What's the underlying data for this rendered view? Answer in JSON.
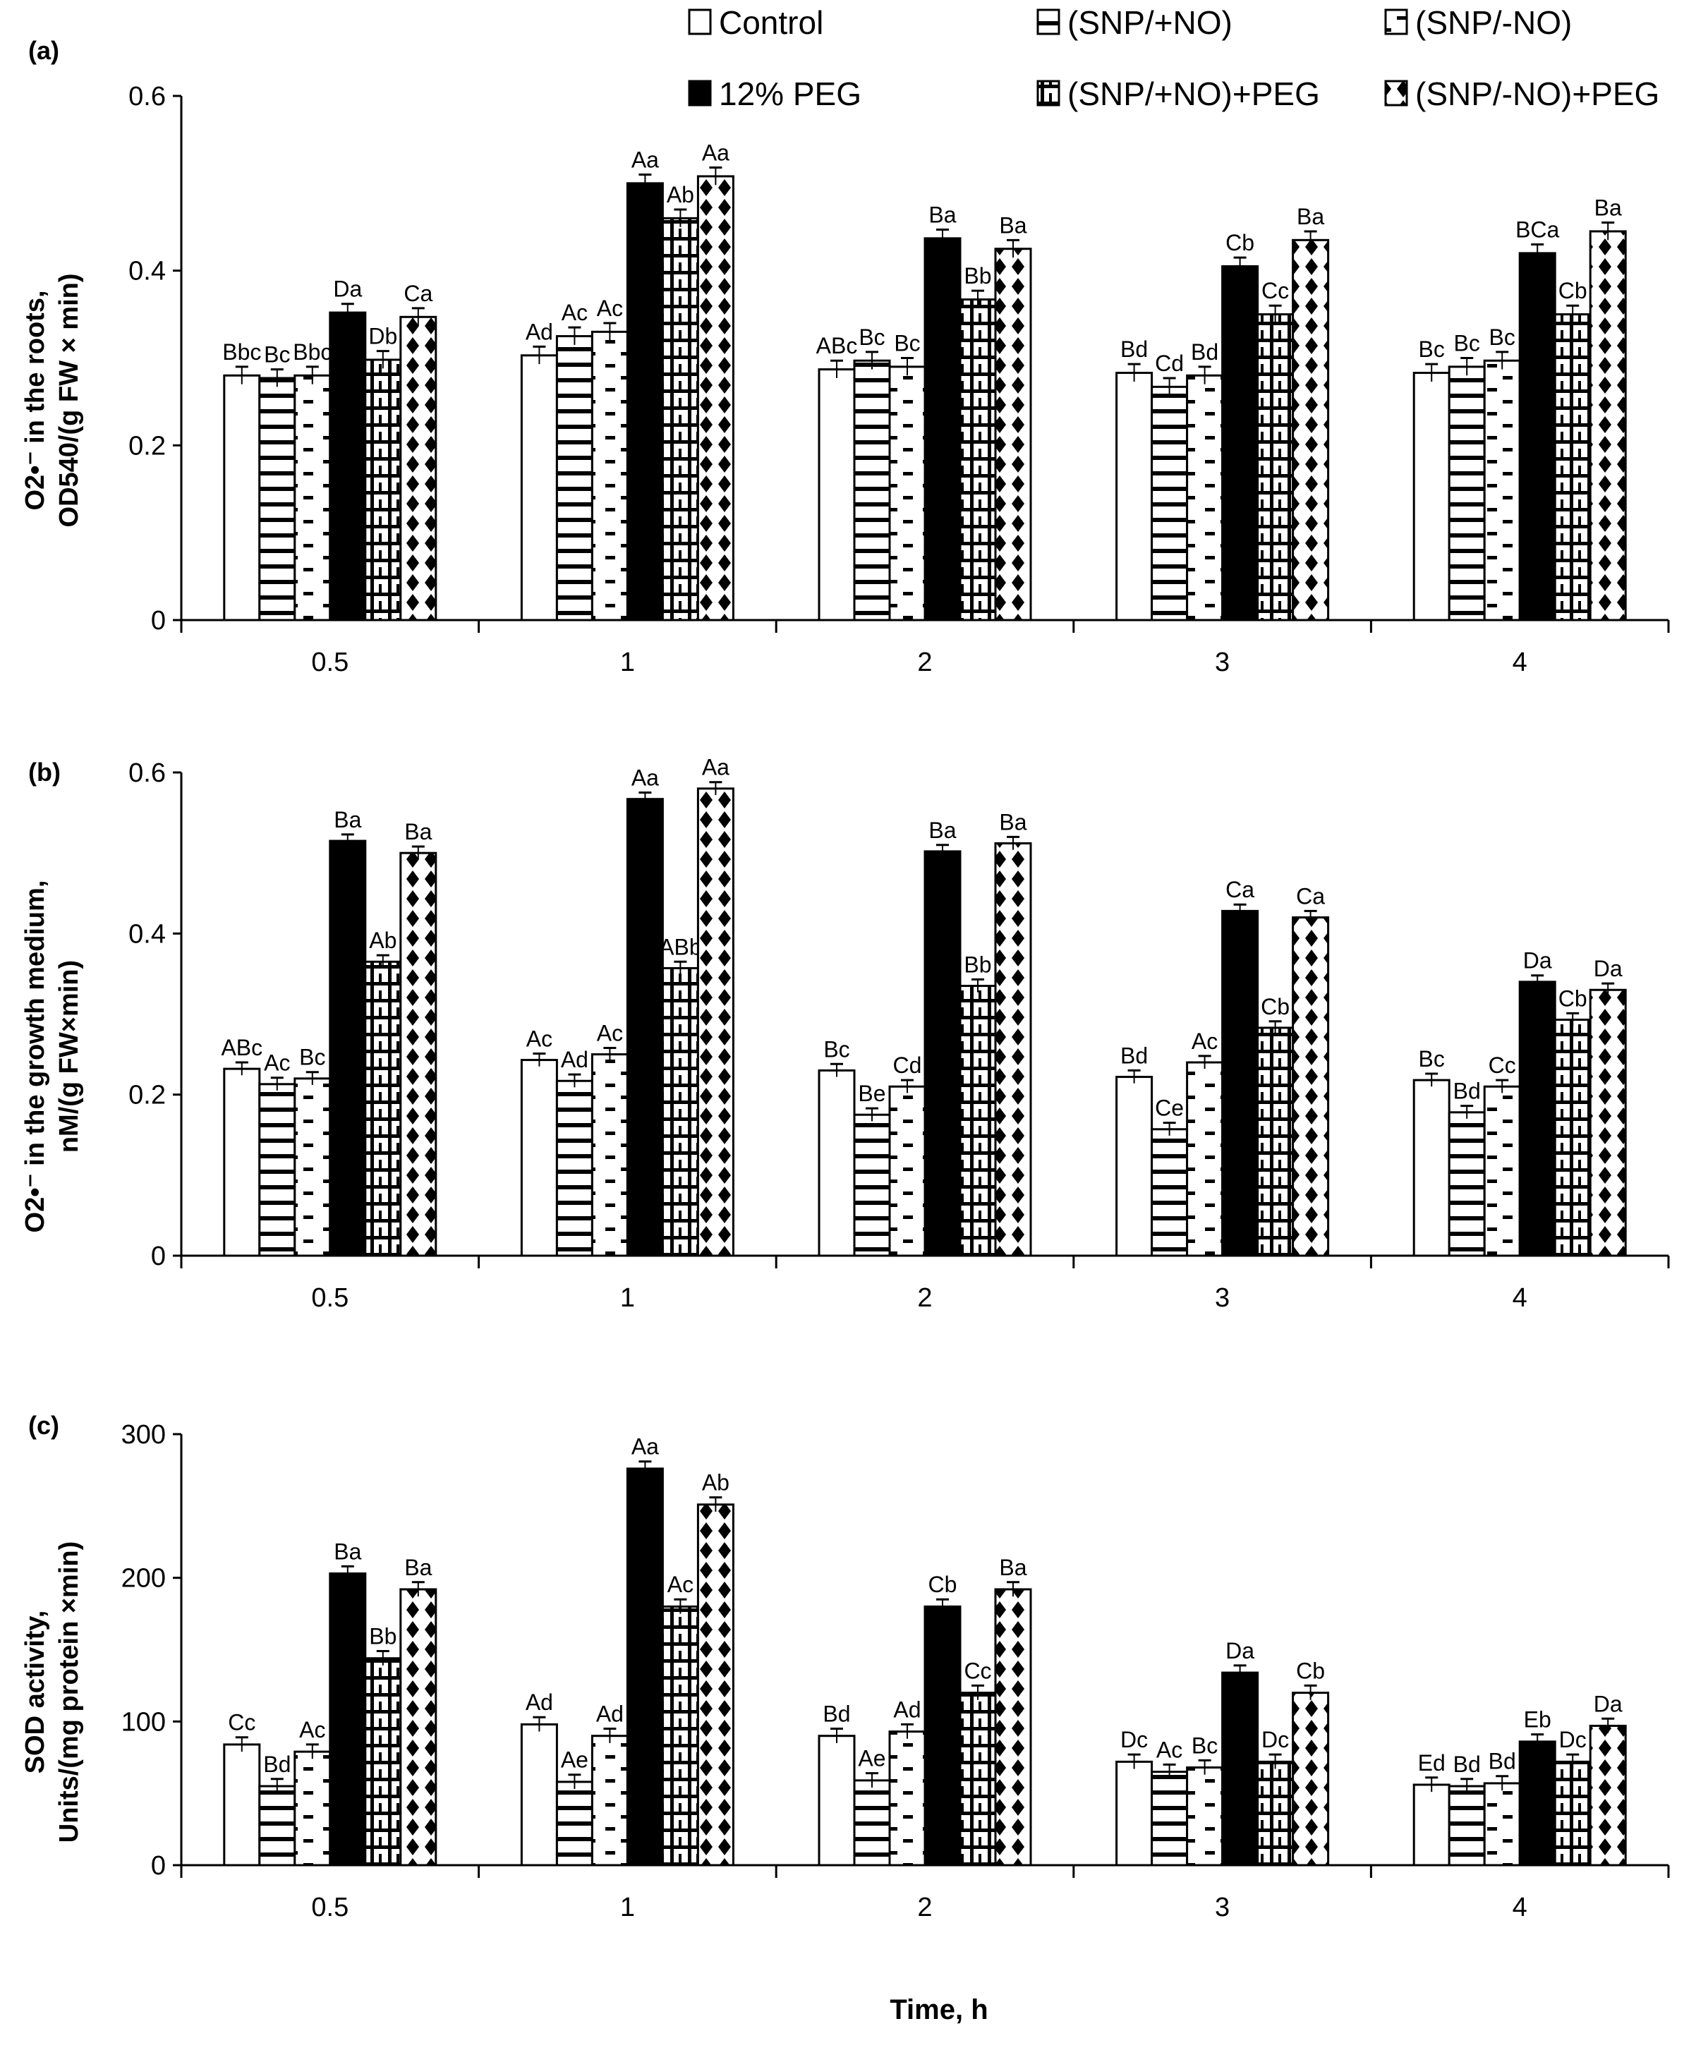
{
  "legend": [
    "Control",
    "(SNP/+NO)",
    "(SNP/-NO)",
    "12% PEG",
    "(SNP/+NO)+PEG",
    "(SNP/-NO)+PEG"
  ],
  "xlabel": "Time, h",
  "chart_data": [
    {
      "type": "bar",
      "panel": "(a)",
      "ylabel": [
        "O2•⁻ in the roots,",
        "OD540/(g FW × min)"
      ],
      "ylim": [
        0,
        0.6
      ],
      "yticks": [
        "0",
        "0.2",
        "0.4",
        "0.6"
      ],
      "categories": [
        "0.5",
        "1",
        "2",
        "3",
        "4"
      ],
      "series": [
        {
          "name": "Control",
          "values": [
            0.28,
            0.303,
            0.287,
            0.283,
            0.283
          ],
          "labels": [
            "Bbc",
            "Ad",
            "ABc",
            "Bd",
            "Bc"
          ]
        },
        {
          "name": "(SNP/+NO)",
          "values": [
            0.277,
            0.325,
            0.297,
            0.267,
            0.29
          ],
          "labels": [
            "Bc",
            "Ac",
            "Bc",
            "Cd",
            "Bc"
          ]
        },
        {
          "name": "(SNP/-NO)",
          "values": [
            0.28,
            0.33,
            0.29,
            0.28,
            0.297
          ],
          "labels": [
            "Bbc",
            "Ac",
            "Bc",
            "Bd",
            "Bc"
          ]
        },
        {
          "name": "12% PEG",
          "values": [
            0.352,
            0.5,
            0.437,
            0.405,
            0.42
          ],
          "labels": [
            "Da",
            "Aa",
            "Ba",
            "Cb",
            "BCa"
          ]
        },
        {
          "name": "(SNP/+NO)+PEG",
          "values": [
            0.298,
            0.46,
            0.367,
            0.35,
            0.35
          ],
          "labels": [
            "Db",
            "Ab",
            "Bb",
            "Cc",
            "Cb"
          ]
        },
        {
          "name": "(SNP/-NO)+PEG",
          "values": [
            0.347,
            0.508,
            0.425,
            0.435,
            0.445
          ],
          "labels": [
            "Ca",
            "Aa",
            "Ba",
            "Ba",
            "Ba"
          ]
        }
      ],
      "error": 0.01
    },
    {
      "type": "bar",
      "panel": "(b)",
      "ylabel": [
        "O2•⁻ in the growth medium,",
        "nM/(g FW×min)"
      ],
      "ylim": [
        0,
        0.6
      ],
      "yticks": [
        "0",
        "0.2",
        "0.4",
        "0.6"
      ],
      "categories": [
        "0.5",
        "1",
        "2",
        "3",
        "4"
      ],
      "series": [
        {
          "name": "Control",
          "values": [
            0.232,
            0.243,
            0.23,
            0.222,
            0.218
          ],
          "labels": [
            "ABc",
            "Ac",
            "Bc",
            "Bd",
            "Bc"
          ]
        },
        {
          "name": "(SNP/+NO)",
          "values": [
            0.213,
            0.217,
            0.175,
            0.157,
            0.178
          ],
          "labels": [
            "Ac",
            "Ad",
            "Be",
            "Ce",
            "Bd"
          ]
        },
        {
          "name": "(SNP/-NO)",
          "values": [
            0.22,
            0.25,
            0.21,
            0.24,
            0.21
          ],
          "labels": [
            "Bc",
            "Ac",
            "Cd",
            "Ac",
            "Cc"
          ]
        },
        {
          "name": "12% PEG",
          "values": [
            0.515,
            0.567,
            0.502,
            0.428,
            0.34
          ],
          "labels": [
            "Ba",
            "Aa",
            "Ba",
            "Ca",
            "Da"
          ]
        },
        {
          "name": "(SNP/+NO)+PEG",
          "values": [
            0.365,
            0.357,
            0.335,
            0.283,
            0.293
          ],
          "labels": [
            "Ab",
            "ABb",
            "Bb",
            "Cb",
            "Cb"
          ]
        },
        {
          "name": "(SNP/-NO)+PEG",
          "values": [
            0.5,
            0.58,
            0.512,
            0.42,
            0.33
          ],
          "labels": [
            "Ba",
            "Aa",
            "Ba",
            "Ca",
            "Da"
          ]
        }
      ],
      "error": 0.008
    },
    {
      "type": "bar",
      "panel": "(c)",
      "ylabel": [
        "SOD activity,",
        "Units/(mg protein ×min)"
      ],
      "ylim": [
        0,
        300
      ],
      "yticks": [
        "0",
        "100",
        "200",
        "300"
      ],
      "categories": [
        "0.5",
        "1",
        "2",
        "3",
        "4"
      ],
      "series": [
        {
          "name": "Control",
          "values": [
            84,
            98,
            90,
            72,
            56
          ],
          "labels": [
            "Cc",
            "Ad",
            "Bd",
            "Dc",
            "Ed"
          ]
        },
        {
          "name": "(SNP/+NO)",
          "values": [
            55,
            58,
            59,
            65,
            55
          ],
          "labels": [
            "Bd",
            "Ae",
            "Ae",
            "Ac",
            "Bd"
          ]
        },
        {
          "name": "(SNP/-NO)",
          "values": [
            79,
            90,
            93,
            68,
            57
          ],
          "labels": [
            "Ac",
            "Ad",
            "Ad",
            "Bc",
            "Bd"
          ]
        },
        {
          "name": "12% PEG",
          "values": [
            203,
            276,
            180,
            134,
            86
          ],
          "labels": [
            "Ba",
            "Aa",
            "Cb",
            "Da",
            "Eb"
          ]
        },
        {
          "name": "(SNP/+NO)+PEG",
          "values": [
            144,
            180,
            120,
            72,
            72
          ],
          "labels": [
            "Bb",
            "Ac",
            "Cc",
            "Dc",
            "Dc"
          ]
        },
        {
          "name": "(SNP/-NO)+PEG",
          "values": [
            192,
            251,
            192,
            120,
            97
          ],
          "labels": [
            "Ba",
            "Ab",
            "Ba",
            "Cb",
            "Da"
          ]
        }
      ],
      "error": 5
    }
  ]
}
